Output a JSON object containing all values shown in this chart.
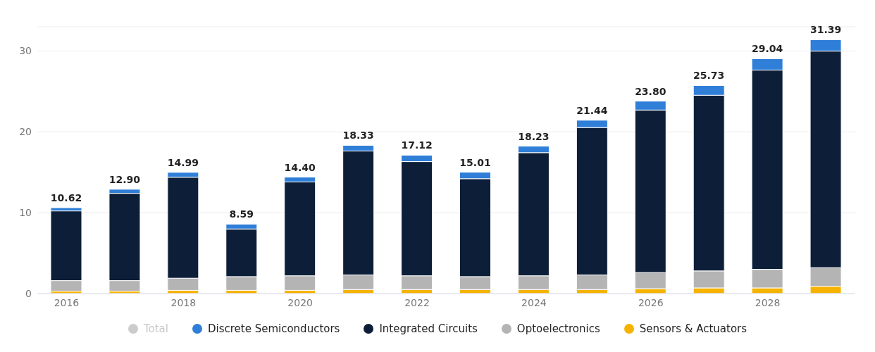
{
  "chart_data": {
    "type": "bar",
    "stacked": true,
    "categories": [
      "2016",
      null,
      "2018",
      null,
      "2020",
      null,
      "2022",
      null,
      "2024",
      null,
      "2026",
      null,
      "2028",
      null
    ],
    "series": [
      {
        "name": "Total",
        "color": "#cccccc",
        "values": [
          null,
          null,
          null,
          null,
          null,
          null,
          null,
          null,
          null,
          null,
          null,
          null,
          null,
          null
        ]
      },
      {
        "name": "Sensors & Actuators",
        "color": "#f5b300",
        "values": [
          0.3,
          0.3,
          0.4,
          0.4,
          0.4,
          0.5,
          0.5,
          0.5,
          0.5,
          0.5,
          0.6,
          0.7,
          0.7,
          0.9
        ]
      },
      {
        "name": "Optoelectronics",
        "color": "#b4b4b4",
        "values": [
          1.3,
          1.3,
          1.5,
          1.7,
          1.8,
          1.8,
          1.7,
          1.6,
          1.7,
          1.8,
          2.0,
          2.1,
          2.3,
          2.3
        ]
      },
      {
        "name": "Integrated Circuits",
        "color": "#0d1f38",
        "values": [
          8.62,
          10.8,
          12.49,
          5.89,
          11.6,
          15.33,
          14.12,
          12.11,
          15.23,
          18.24,
          20.1,
          21.73,
          24.64,
          26.79
        ]
      },
      {
        "name": "Discrete Semiconductors",
        "color": "#2f7ed8",
        "values": [
          0.4,
          0.5,
          0.6,
          0.6,
          0.6,
          0.7,
          0.8,
          0.8,
          0.8,
          0.9,
          1.1,
          1.2,
          1.4,
          1.4
        ]
      }
    ],
    "totals": [
      "10.62",
      "12.90",
      "14.99",
      "8.59",
      "14.40",
      "18.33",
      "17.12",
      "15.01",
      "18.23",
      "21.44",
      "23.80",
      "25.73",
      "29.04",
      "31.39"
    ],
    "ylim": [
      0,
      33
    ],
    "yticks": [
      0,
      10,
      20,
      30
    ],
    "grid": "y",
    "legend": "bottom"
  }
}
